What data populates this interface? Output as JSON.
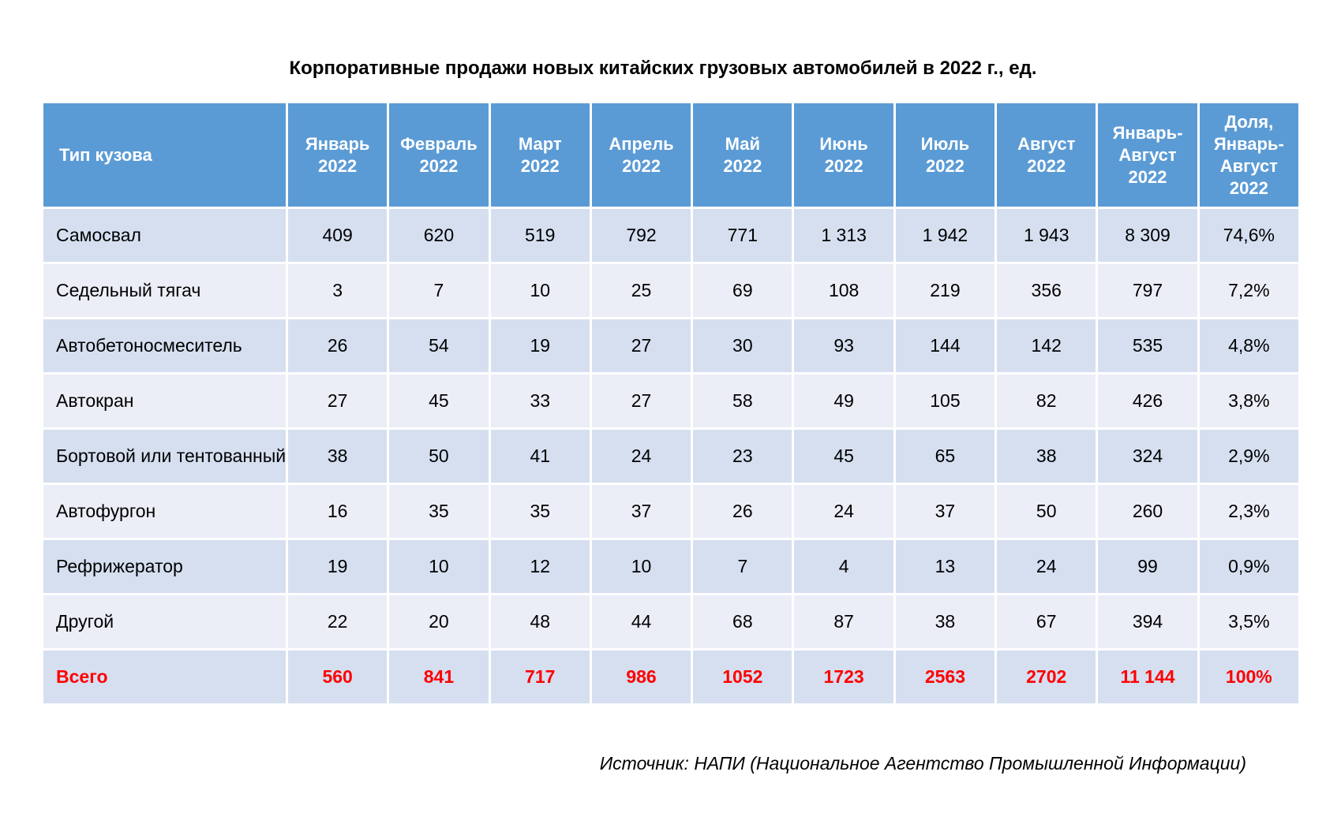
{
  "title": "Корпоративные продажи новых китайских грузовых автомобилей в 2022 г., ед.",
  "table": {
    "headers": [
      [
        "Тип кузова"
      ],
      [
        "Январь",
        "2022"
      ],
      [
        "Февраль",
        "2022"
      ],
      [
        "Март",
        "2022"
      ],
      [
        "Апрель",
        "2022"
      ],
      [
        "Май",
        "2022"
      ],
      [
        "Июнь",
        "2022"
      ],
      [
        "Июль",
        "2022"
      ],
      [
        "Август",
        "2022"
      ],
      [
        "Январь-",
        "Август",
        "2022"
      ],
      [
        "Доля,",
        "Январь-",
        "Август",
        "2022"
      ]
    ],
    "rows": [
      [
        "Самосвал",
        "409",
        "620",
        "519",
        "792",
        "771",
        "1 313",
        "1 942",
        "1 943",
        "8 309",
        "74,6%"
      ],
      [
        "Седельный тягач",
        "3",
        "7",
        "10",
        "25",
        "69",
        "108",
        "219",
        "356",
        "797",
        "7,2%"
      ],
      [
        "Автобетоносмеситель",
        "26",
        "54",
        "19",
        "27",
        "30",
        "93",
        "144",
        "142",
        "535",
        "4,8%"
      ],
      [
        "Автокран",
        "27",
        "45",
        "33",
        "27",
        "58",
        "49",
        "105",
        "82",
        "426",
        "3,8%"
      ],
      [
        "Бортовой или тентованный",
        "38",
        "50",
        "41",
        "24",
        "23",
        "45",
        "65",
        "38",
        "324",
        "2,9%"
      ],
      [
        "Автофургон",
        "16",
        "35",
        "35",
        "37",
        "26",
        "24",
        "37",
        "50",
        "260",
        "2,3%"
      ],
      [
        "Рефрижератор",
        "19",
        "10",
        "12",
        "10",
        "7",
        "4",
        "13",
        "24",
        "99",
        "0,9%"
      ],
      [
        "Другой",
        "22",
        "20",
        "48",
        "44",
        "68",
        "87",
        "38",
        "67",
        "394",
        "3,5%"
      ]
    ],
    "total": [
      "Всего",
      "560",
      "841",
      "717",
      "986",
      "1052",
      "1723",
      "2563",
      "2702",
      "11 144",
      "100%"
    ]
  },
  "source": "Источник: НАПИ (Национальное Агентство Промышленной Информации)",
  "colors": {
    "header_bg": "#5b9bd5",
    "row_odd_bg": "#d5dff0",
    "row_even_bg": "#ebeef7",
    "total_text": "#ff0000"
  }
}
